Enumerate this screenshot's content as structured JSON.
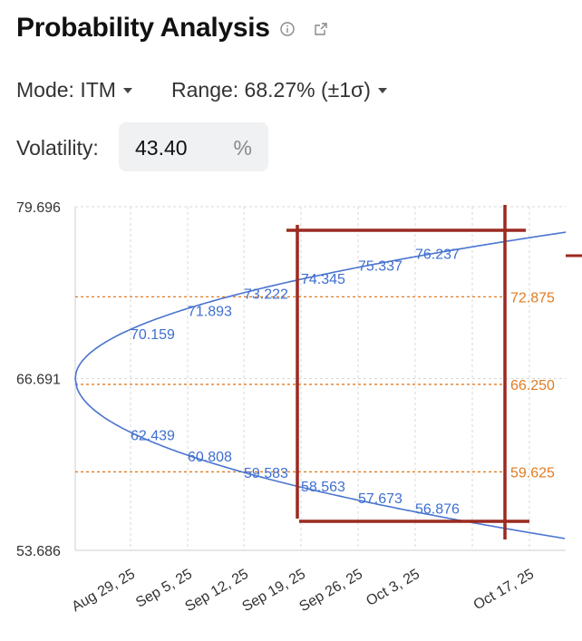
{
  "header": {
    "title": "Probability Analysis",
    "info_icon": "info-circle-icon",
    "share_icon": "share-icon"
  },
  "controls": {
    "mode_label": "Mode: ITM",
    "range_label": "Range: 68.27% (±1σ)",
    "volatility_label": "Volatility:",
    "volatility_value": "43.40",
    "volatility_unit": "%"
  },
  "colors": {
    "curve": "#4a74cf",
    "reference": "#e07b22",
    "overlay": "#9b2a20",
    "grid": "#d9d9d9"
  },
  "chart_data": {
    "type": "line",
    "ylim": [
      53.686,
      79.696
    ],
    "yticks": [
      "79.696",
      "66.691",
      "53.686"
    ],
    "xticks": [
      "Aug 29, 25",
      "Sep 5, 25",
      "Sep 12, 25",
      "Sep 19, 25",
      "Sep 26, 25",
      "Oct 3, 25",
      "Oct 17, 25"
    ],
    "center_price": 66.691,
    "series": [
      {
        "values": [
          70.159,
          71.893,
          73.222,
          74.345,
          75.337,
          76.237
        ],
        "labels": [
          "70.159",
          "71.893",
          "73.222",
          "74.345",
          "75.337",
          "76.237"
        ]
      },
      {
        "values": [
          62.439,
          60.808,
          59.583,
          58.563,
          57.673,
          56.876
        ],
        "labels": [
          "62.439",
          "60.808",
          "59.583",
          "58.563",
          "57.673",
          "56.876"
        ]
      }
    ],
    "reference_lines": [
      {
        "value": 72.875,
        "label": "72.875"
      },
      {
        "value": 66.25,
        "label": "66.250"
      },
      {
        "value": 59.625,
        "label": "59.625"
      }
    ],
    "grid": true
  }
}
